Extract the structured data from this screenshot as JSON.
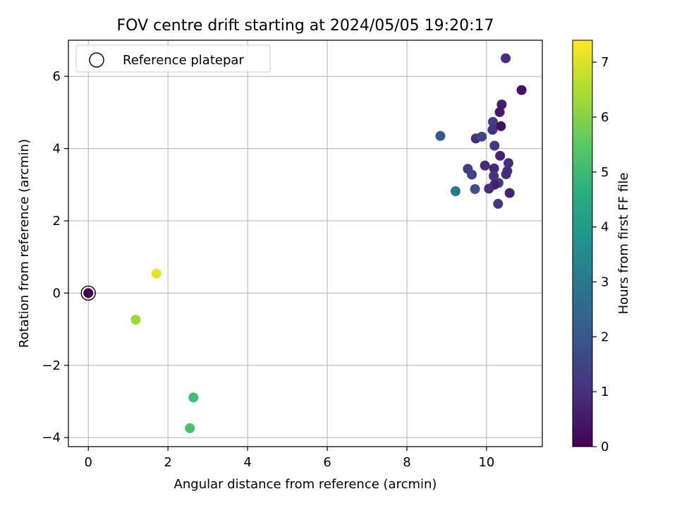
{
  "chart_data": {
    "type": "scatter",
    "title": "FOV centre drift starting at 2024/05/05 19:20:17",
    "xlabel": "Angular distance from reference (arcmin)",
    "ylabel": "Rotation from reference (arcmin)",
    "xlim": [
      -0.5,
      11.4
    ],
    "ylim": [
      -4.25,
      7.0
    ],
    "xticks": [
      0,
      2,
      4,
      6,
      8,
      10
    ],
    "yticks": [
      -4,
      -2,
      0,
      2,
      4,
      6
    ],
    "grid": true,
    "legend": {
      "placement": "top-left",
      "entries": [
        "Reference platepar"
      ]
    },
    "colorbar": {
      "label": "Hours from first FF file",
      "colormap": "viridis",
      "range": [
        0,
        7.4
      ],
      "ticks": [
        0,
        1,
        2,
        3,
        4,
        5,
        6,
        7
      ]
    },
    "reference_point": {
      "x": 0,
      "y": 0
    },
    "points": [
      {
        "x": 0.0,
        "y": 0.0,
        "c": 0.0
      },
      {
        "x": 10.48,
        "y": 6.5,
        "c": 0.9
      },
      {
        "x": 10.88,
        "y": 5.62,
        "c": 0.4
      },
      {
        "x": 10.38,
        "y": 5.22,
        "c": 0.6
      },
      {
        "x": 10.33,
        "y": 5.01,
        "c": 0.5
      },
      {
        "x": 10.16,
        "y": 4.74,
        "c": 1.3
      },
      {
        "x": 10.15,
        "y": 4.52,
        "c": 1.1
      },
      {
        "x": 10.36,
        "y": 4.62,
        "c": 0.3
      },
      {
        "x": 8.84,
        "y": 4.35,
        "c": 2.0
      },
      {
        "x": 9.73,
        "y": 4.28,
        "c": 1.0
      },
      {
        "x": 9.88,
        "y": 4.33,
        "c": 1.6
      },
      {
        "x": 10.2,
        "y": 4.08,
        "c": 1.2
      },
      {
        "x": 10.34,
        "y": 3.8,
        "c": 0.7
      },
      {
        "x": 10.55,
        "y": 3.6,
        "c": 1.0
      },
      {
        "x": 9.53,
        "y": 3.44,
        "c": 1.4
      },
      {
        "x": 9.96,
        "y": 3.53,
        "c": 0.9
      },
      {
        "x": 10.19,
        "y": 3.45,
        "c": 0.8
      },
      {
        "x": 10.52,
        "y": 3.38,
        "c": 1.0
      },
      {
        "x": 10.49,
        "y": 3.29,
        "c": 0.9
      },
      {
        "x": 9.63,
        "y": 3.28,
        "c": 1.5
      },
      {
        "x": 10.18,
        "y": 3.24,
        "c": 1.1
      },
      {
        "x": 10.3,
        "y": 3.05,
        "c": 1.3
      },
      {
        "x": 10.2,
        "y": 3.0,
        "c": 0.6
      },
      {
        "x": 10.06,
        "y": 2.89,
        "c": 1.0
      },
      {
        "x": 9.71,
        "y": 2.88,
        "c": 1.8
      },
      {
        "x": 9.22,
        "y": 2.82,
        "c": 2.9
      },
      {
        "x": 10.58,
        "y": 2.77,
        "c": 0.7
      },
      {
        "x": 10.29,
        "y": 2.47,
        "c": 1.2
      },
      {
        "x": 1.71,
        "y": 0.54,
        "c": 7.1
      },
      {
        "x": 1.19,
        "y": -0.74,
        "c": 6.3
      },
      {
        "x": 2.64,
        "y": -2.89,
        "c": 5.1
      },
      {
        "x": 2.55,
        "y": -3.74,
        "c": 5.2
      }
    ]
  }
}
